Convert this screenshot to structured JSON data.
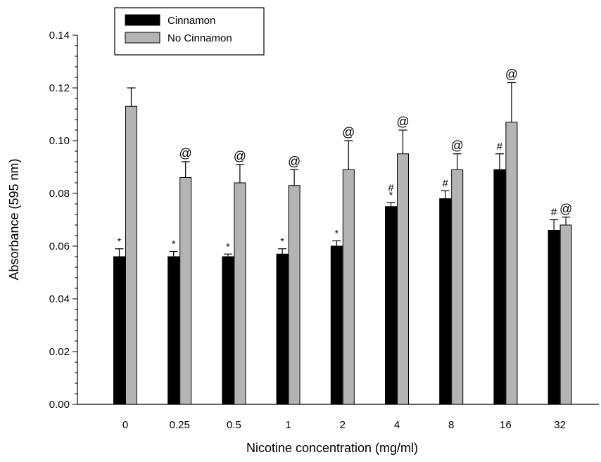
{
  "chart_data": {
    "type": "bar",
    "xlabel": "Nicotine concentration (mg/ml)",
    "ylabel": "Absorbance (595 nm)",
    "ylim": [
      0,
      0.14
    ],
    "yticks": [
      "0.00",
      "0.02",
      "0.04",
      "0.06",
      "0.08",
      "0.10",
      "0.12",
      "0.14"
    ],
    "categories": [
      "0",
      "0.25",
      "0.5",
      "1",
      "2",
      "4",
      "8",
      "16",
      "32"
    ],
    "legend_position": "top-left",
    "series": [
      {
        "name": "Cinnamon",
        "color": "#000000",
        "values": [
          0.056,
          0.056,
          0.056,
          0.057,
          0.06,
          0.075,
          0.078,
          0.089,
          0.066
        ],
        "errors": [
          0.003,
          0.002,
          0.001,
          0.002,
          0.002,
          0.0015,
          0.003,
          0.006,
          0.004
        ],
        "markers": [
          "*",
          "*",
          "*",
          "*",
          "*",
          "#\n*",
          "#",
          "#",
          "#"
        ]
      },
      {
        "name": "No Cinnamon",
        "color": "#b4b4b4",
        "values": [
          0.113,
          0.086,
          0.084,
          0.083,
          0.089,
          0.095,
          0.089,
          0.107,
          0.068
        ],
        "errors": [
          0.007,
          0.006,
          0.007,
          0.006,
          0.011,
          0.009,
          0.006,
          0.015,
          0.003
        ],
        "markers": [
          "",
          "@",
          "@",
          "@",
          "@",
          "@",
          "@",
          "@",
          "@"
        ]
      }
    ]
  }
}
